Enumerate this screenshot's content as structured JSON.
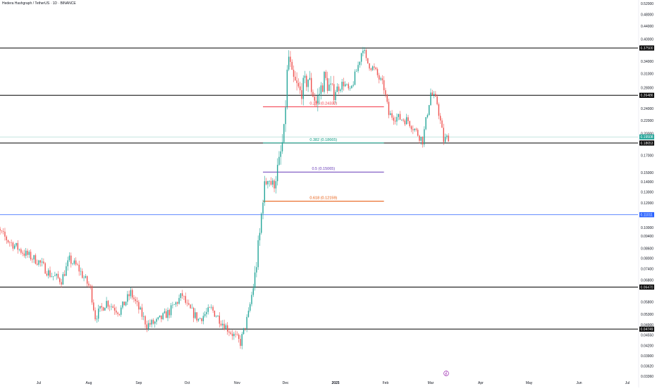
{
  "header": {
    "symbol_title": "Hedera Hashgraph / TetherUS · 1D · BINANCE"
  },
  "colors": {
    "up": "#26a69a",
    "down": "#ef5350",
    "level_line": "#000000",
    "blue_line": "#2962ff",
    "fib_0236": "#f23645",
    "fib_0382": "#089981",
    "fib_05": "#673ab7",
    "fib_0618": "#e65100",
    "price_line": "#a5d6cf",
    "axis_text": "#131722"
  },
  "chart_data": {
    "type": "candlestick",
    "title": "Hedera Hashgraph / TetherUS · 1D · BINANCE",
    "x_range": [
      "2024-06-01",
      "2025-07-31"
    ],
    "y_scale": "log",
    "ylim": [
      0.03,
      0.54
    ],
    "grid": false,
    "x_tick_labels": [
      {
        "label": "Jul",
        "date": "2024-07-01"
      },
      {
        "label": "Aug",
        "date": "2024-08-01"
      },
      {
        "label": "Sep",
        "date": "2024-09-01"
      },
      {
        "label": "Oct",
        "date": "2024-10-01"
      },
      {
        "label": "Nov",
        "date": "2024-11-01"
      },
      {
        "label": "Dec",
        "date": "2024-12-01"
      },
      {
        "label": "2025",
        "date": "2025-01-01"
      },
      {
        "label": "Feb",
        "date": "2025-02-01"
      },
      {
        "label": "Mar",
        "date": "2025-03-01"
      },
      {
        "label": "Apr",
        "date": "2025-04-01"
      },
      {
        "label": "May",
        "date": "2025-05-01"
      },
      {
        "label": "Jun",
        "date": "2025-06-01"
      },
      {
        "label": "Jul",
        "date": "2025-07-01"
      }
    ],
    "y_tick_labels": [
      "0.52000",
      "0.48000",
      "0.44000",
      "0.40000",
      "0.34000",
      "0.31000",
      "0.28000",
      "0.24000",
      "0.22000",
      "0.20000",
      "0.17000",
      "0.15000",
      "0.14000",
      "0.13000",
      "0.12000",
      "0.10000",
      "0.09400",
      "0.08600",
      "0.08000",
      "0.07400",
      "0.06800",
      "0.05800",
      "0.05300",
      "0.04900",
      "0.04550",
      "0.04200",
      "0.03900",
      "0.03620",
      "0.03360"
    ],
    "price_labels": [
      {
        "text": "0.37500",
        "value": 0.375,
        "style": "level"
      },
      {
        "text": "0.26486",
        "value": 0.26486,
        "style": "level"
      },
      {
        "text": "0.19508",
        "value": 0.19508,
        "style": "last"
      },
      {
        "text": "0.18653",
        "value": 0.18653,
        "style": "level"
      },
      {
        "text": "0.11011",
        "value": 0.11011,
        "style": "blue"
      },
      {
        "text": "0.06470",
        "value": 0.0647,
        "style": "level"
      },
      {
        "text": "0.04749",
        "value": 0.04749,
        "style": "level"
      }
    ],
    "horizontal_levels": [
      {
        "value": 0.375,
        "style": "level"
      },
      {
        "value": 0.26486,
        "style": "level"
      },
      {
        "value": 0.18653,
        "style": "level"
      },
      {
        "value": 0.11011,
        "style": "blue"
      },
      {
        "value": 0.0647,
        "style": "level"
      },
      {
        "value": 0.04749,
        "style": "level"
      }
    ],
    "last_price": {
      "value": 0.19508
    },
    "fib_levels": [
      {
        "label": "0.236 (0.24332)",
        "value": 0.24332,
        "color_key": "fib_0236",
        "start": "2024-11-17",
        "end": "2025-01-31"
      },
      {
        "label": "0.382 (0.18665)",
        "value": 0.18665,
        "color_key": "fib_0382",
        "start": "2024-11-17",
        "end": "2025-01-31"
      },
      {
        "label": "0.5 (0.15065)",
        "value": 0.15065,
        "color_key": "fib_05",
        "start": "2024-11-17",
        "end": "2025-01-31"
      },
      {
        "label": "0.618 (0.12159)",
        "value": 0.12159,
        "color_key": "fib_0618",
        "start": "2024-11-17",
        "end": "2025-01-31"
      }
    ],
    "anchors": [
      {
        "start": "2024-06-01",
        "close": 0.104
      },
      {
        "start": "2024-06-12",
        "close": 0.091
      },
      {
        "start": "2024-06-22",
        "close": 0.083
      },
      {
        "start": "2024-07-01",
        "close": 0.078
      },
      {
        "start": "2024-07-08",
        "close": 0.071
      },
      {
        "start": "2024-07-15",
        "close": 0.068
      },
      {
        "start": "2024-07-20",
        "close": 0.079
      },
      {
        "start": "2024-07-25",
        "close": 0.075
      },
      {
        "start": "2024-08-02",
        "close": 0.064
      },
      {
        "start": "2024-08-05",
        "close": 0.052
      },
      {
        "start": "2024-08-12",
        "close": 0.058
      },
      {
        "start": "2024-08-20",
        "close": 0.054
      },
      {
        "start": "2024-08-27",
        "close": 0.062
      },
      {
        "start": "2024-09-06",
        "close": 0.049
      },
      {
        "start": "2024-09-12",
        "close": 0.05
      },
      {
        "start": "2024-09-20",
        "close": 0.054
      },
      {
        "start": "2024-09-28",
        "close": 0.061
      },
      {
        "start": "2024-10-01",
        "close": 0.056
      },
      {
        "start": "2024-10-08",
        "close": 0.051
      },
      {
        "start": "2024-10-16",
        "close": 0.055
      },
      {
        "start": "2024-10-24",
        "close": 0.049
      },
      {
        "start": "2024-11-03",
        "close": 0.043
      },
      {
        "start": "2024-11-08",
        "close": 0.053
      },
      {
        "start": "2024-11-12",
        "close": 0.07
      },
      {
        "start": "2024-11-15",
        "close": 0.095
      },
      {
        "start": "2024-11-17",
        "close": 0.127
      },
      {
        "start": "2024-11-20",
        "close": 0.148
      },
      {
        "start": "2024-11-23",
        "close": 0.135
      },
      {
        "start": "2024-11-27",
        "close": 0.16
      },
      {
        "start": "2024-11-30",
        "close": 0.2
      },
      {
        "start": "2024-12-02",
        "close": 0.31
      },
      {
        "start": "2024-12-03",
        "close": 0.35
      },
      {
        "start": "2024-12-05",
        "close": 0.3
      },
      {
        "start": "2024-12-10",
        "close": 0.27
      },
      {
        "start": "2024-12-15",
        "close": 0.3
      },
      {
        "start": "2024-12-20",
        "close": 0.25
      },
      {
        "start": "2024-12-25",
        "close": 0.3
      },
      {
        "start": "2024-12-30",
        "close": 0.27
      },
      {
        "start": "2025-01-06",
        "close": 0.29
      },
      {
        "start": "2025-01-10",
        "close": 0.27
      },
      {
        "start": "2025-01-15",
        "close": 0.33
      },
      {
        "start": "2025-01-18",
        "close": 0.38
      },
      {
        "start": "2025-01-20",
        "close": 0.34
      },
      {
        "start": "2025-01-25",
        "close": 0.32
      },
      {
        "start": "2025-01-31",
        "close": 0.28
      },
      {
        "start": "2025-02-03",
        "close": 0.23
      },
      {
        "start": "2025-02-08",
        "close": 0.225
      },
      {
        "start": "2025-02-15",
        "close": 0.22
      },
      {
        "start": "2025-02-24",
        "close": 0.19
      },
      {
        "start": "2025-03-01",
        "close": 0.27
      },
      {
        "start": "2025-03-05",
        "close": 0.25
      },
      {
        "start": "2025-03-09",
        "close": 0.19
      },
      {
        "start": "2025-03-12",
        "close": 0.195
      }
    ],
    "candle_end": "2025-03-12"
  }
}
